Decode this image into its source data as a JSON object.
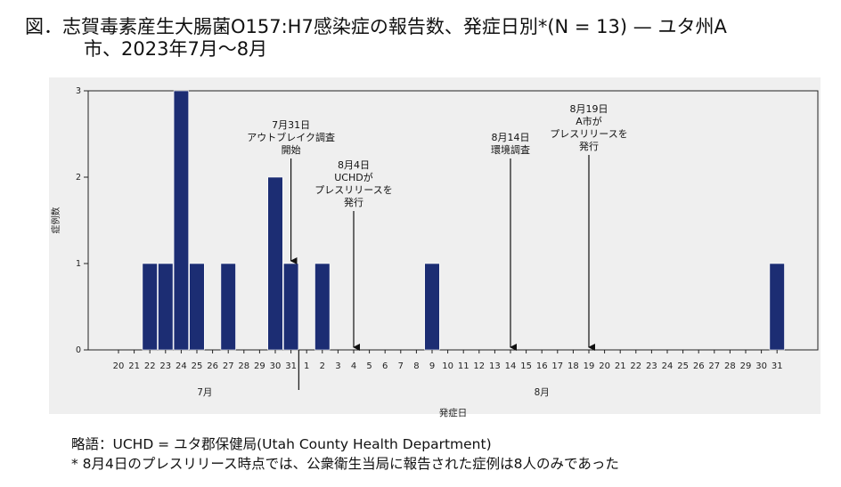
{
  "title": {
    "line1": "図．志賀毒素産生大腸菌O157:H7感染症の報告数、発症日別*(N = 13) — ユタ州A",
    "line2": "市、2023年7月〜8月"
  },
  "chart_data": {
    "type": "bar",
    "title": "志賀毒素産生大腸菌O157:H7感染症の報告数、発症日別*(N = 13) — ユタ州A市、2023年7月〜8月",
    "xlabel": "発症日",
    "ylabel": "症例数",
    "ylim": [
      0,
      3
    ],
    "yticks": [
      "0",
      "1",
      "2",
      "3"
    ],
    "grid": false,
    "month_groups": [
      {
        "label": "7月",
        "from": 0,
        "to": 11
      },
      {
        "label": "8月",
        "from": 12,
        "to": 42
      }
    ],
    "categories": [
      "20",
      "21",
      "22",
      "23",
      "24",
      "25",
      "26",
      "27",
      "28",
      "29",
      "30",
      "31",
      "1",
      "2",
      "3",
      "4",
      "5",
      "6",
      "7",
      "8",
      "9",
      "10",
      "11",
      "12",
      "13",
      "14",
      "15",
      "16",
      "17",
      "18",
      "19",
      "20",
      "21",
      "22",
      "23",
      "24",
      "25",
      "26",
      "27",
      "28",
      "29",
      "30",
      "31"
    ],
    "values": [
      0,
      0,
      1,
      1,
      3,
      1,
      0,
      1,
      0,
      0,
      2,
      1,
      0,
      1,
      0,
      0,
      0,
      0,
      0,
      0,
      1,
      0,
      0,
      0,
      0,
      0,
      0,
      0,
      0,
      0,
      0,
      0,
      0,
      0,
      0,
      0,
      0,
      0,
      0,
      0,
      0,
      0,
      1
    ],
    "annotations": [
      {
        "index": 11,
        "lines": [
          "7月31日",
          "アウトブレイク調査",
          "開始"
        ]
      },
      {
        "index": 15,
        "lines": [
          "8月4日",
          "UCHDが",
          "プレスリリースを",
          "発行"
        ]
      },
      {
        "index": 25,
        "lines": [
          "8月14日",
          "環境調査"
        ]
      },
      {
        "index": 30,
        "lines": [
          "8月19日",
          "A市が",
          "プレスリリースを",
          "発行"
        ]
      }
    ],
    "bar_color": "#1c2d73"
  },
  "footnotes": {
    "abbrev": "略語：UCHD = ユタ郡保健局(Utah County Health Department)",
    "note": "* 8月4日のプレスリリース時点では、公衆衛生当局に報告された症例は8人のみであった"
  }
}
